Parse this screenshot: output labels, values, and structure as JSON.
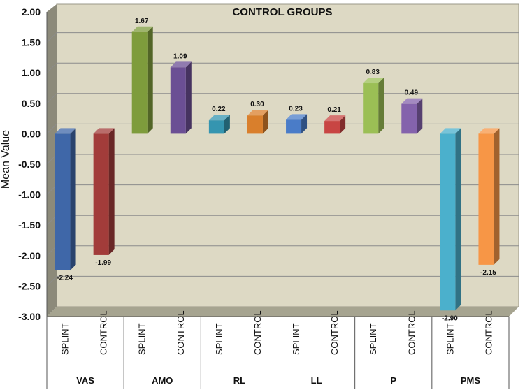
{
  "chart_data": {
    "type": "bar",
    "title": "CONTROL GROUPS",
    "ylabel": "Mean Value",
    "xlabel": "",
    "ylim": [
      -3.0,
      2.0
    ],
    "ytick_step": 0.5,
    "grid": true,
    "groups": [
      {
        "name": "VAS",
        "bars": [
          {
            "label": "SPLINT",
            "value": -2.24,
            "value_label": "-2.24",
            "color": "#3f67a8"
          },
          {
            "label": "CONTROL",
            "value": -1.99,
            "value_label": "-1.99",
            "color": "#a23c3a"
          }
        ]
      },
      {
        "name": "AMO",
        "bars": [
          {
            "label": "SPLINT",
            "value": 1.67,
            "value_label": "1.67",
            "color": "#7e9c3c"
          },
          {
            "label": "CONTROL",
            "value": 1.09,
            "value_label": "1.09",
            "color": "#6b4f94"
          }
        ]
      },
      {
        "name": "RL",
        "bars": [
          {
            "label": "SPLINT",
            "value": 0.22,
            "value_label": "0.22",
            "color": "#3595b0"
          },
          {
            "label": "CONTROL",
            "value": 0.3,
            "value_label": "0.30",
            "color": "#d97f2c"
          }
        ]
      },
      {
        "name": "LL",
        "bars": [
          {
            "label": "SPLINT",
            "value": 0.23,
            "value_label": "0.23",
            "color": "#4a7cc8"
          },
          {
            "label": "CONTROL",
            "value": 0.21,
            "value_label": "0.21",
            "color": "#c84543"
          }
        ]
      },
      {
        "name": "P",
        "bars": [
          {
            "label": "SPLINT",
            "value": 0.83,
            "value_label": "0.83",
            "color": "#9bbf55"
          },
          {
            "label": "CONTROL",
            "value": 0.49,
            "value_label": "0.49",
            "color": "#8463ac"
          }
        ]
      },
      {
        "name": "PMS",
        "bars": [
          {
            "label": "SPLINT",
            "value": -2.9,
            "value_label": "-2.90",
            "color": "#4bb0cc"
          },
          {
            "label": "CONTROL",
            "value": -2.15,
            "value_label": "-2.15",
            "color": "#f79646"
          }
        ]
      }
    ],
    "colors": {
      "plot_background": "#ddd9c4",
      "wall_side": "#8c8a7a",
      "floor": "#a6a490",
      "gridline": "#8c8c8c"
    }
  }
}
